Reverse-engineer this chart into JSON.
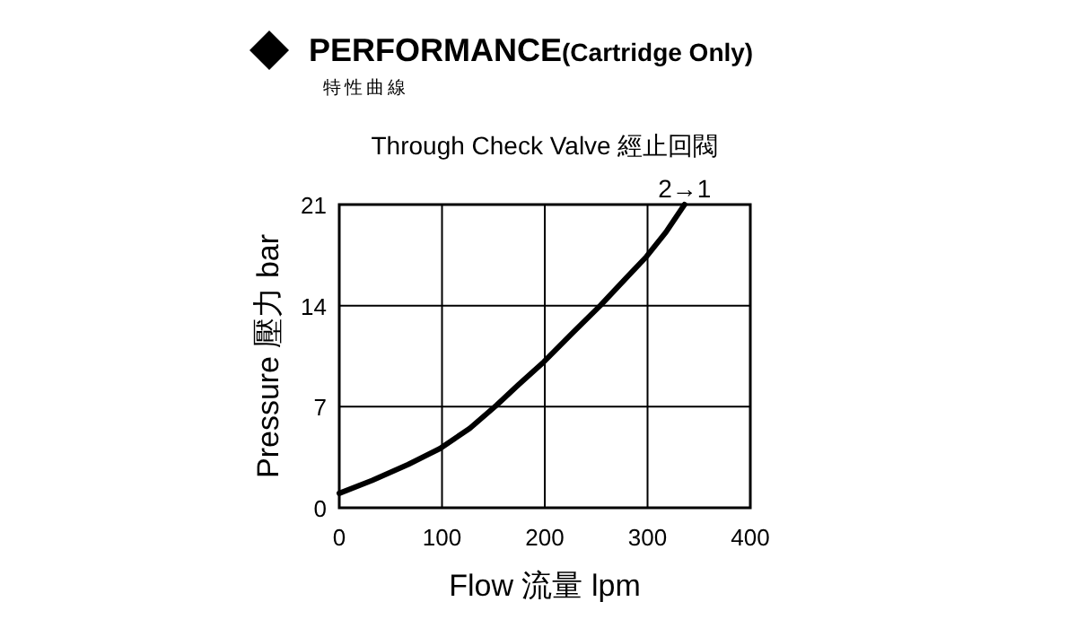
{
  "chart_data": {
    "type": "line",
    "title": "PERFORMANCE(Cartridge Only)",
    "subtitle": "特性曲線",
    "xlabel": "Flow 流量 lpm",
    "ylabel": "Pressure 壓力 bar",
    "annotations": [
      "Through Check Valve 經止回閥",
      {
        "text": "2→1",
        "x": 336,
        "y": 21
      }
    ],
    "x": [
      0,
      32,
      67,
      98,
      127,
      153,
      174,
      199,
      227,
      254,
      279,
      299,
      318,
      336
    ],
    "series": [
      {
        "color": "#000000",
        "values": [
          1.0,
          1.9,
          3.0,
          4.1,
          5.5,
          7.1,
          8.5,
          10.1,
          12.1,
          14.0,
          15.9,
          17.4,
          19.1,
          21.0
        ]
      }
    ],
    "xlim": [
      0,
      400
    ],
    "ylim": [
      0,
      21
    ],
    "xticks": [
      0,
      100,
      200,
      300,
      400
    ],
    "yticks": [
      0,
      7,
      14,
      21
    ],
    "grid": true,
    "marker": "none",
    "line_style": "solid"
  }
}
